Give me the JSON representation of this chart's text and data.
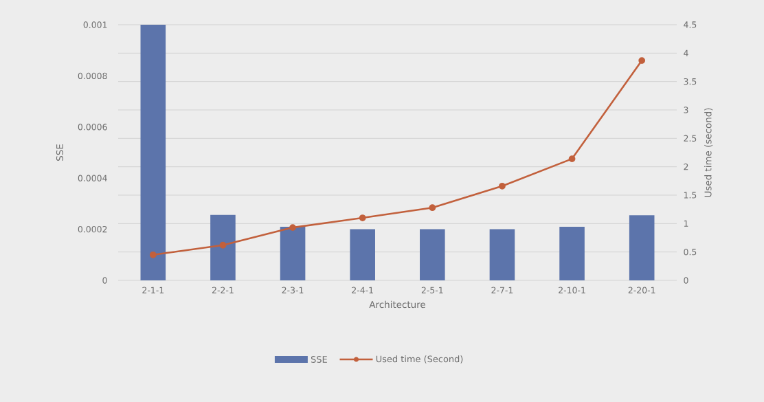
{
  "chart_data": {
    "type": "bar",
    "categories": [
      "2-1-1",
      "2-2-1",
      "2-3-1",
      "2-4-1",
      "2-5-1",
      "2-7-1",
      "2-10-1",
      "2-20-1"
    ],
    "series": [
      {
        "name": "SSE",
        "color": "#5c74ab",
        "values": [
          0.001,
          0.000256,
          0.00021,
          0.0002,
          0.0002,
          0.0002,
          0.00021,
          0.000255
        ]
      },
      {
        "name": "Used time (Second)",
        "type": "line",
        "axis": "y2",
        "color": "#c2603c",
        "marker": "circle",
        "line_style": "solid",
        "values": [
          0.45,
          0.62,
          0.93,
          1.1,
          1.28,
          1.66,
          2.14,
          3.87
        ]
      }
    ],
    "xlabel": "Architecture",
    "ylabel": "SSE",
    "y2label": "Used time (second)",
    "ylim": [
      0,
      0.001
    ],
    "yticks": [
      0,
      0.0002,
      0.0004,
      0.0006,
      0.0008,
      0.001
    ],
    "y2lim": [
      0,
      4.5
    ],
    "y2ticks": [
      0,
      0.5,
      1,
      1.5,
      2,
      2.5,
      3,
      3.5,
      4,
      4.5
    ],
    "grid": true,
    "legend": "bottom"
  }
}
